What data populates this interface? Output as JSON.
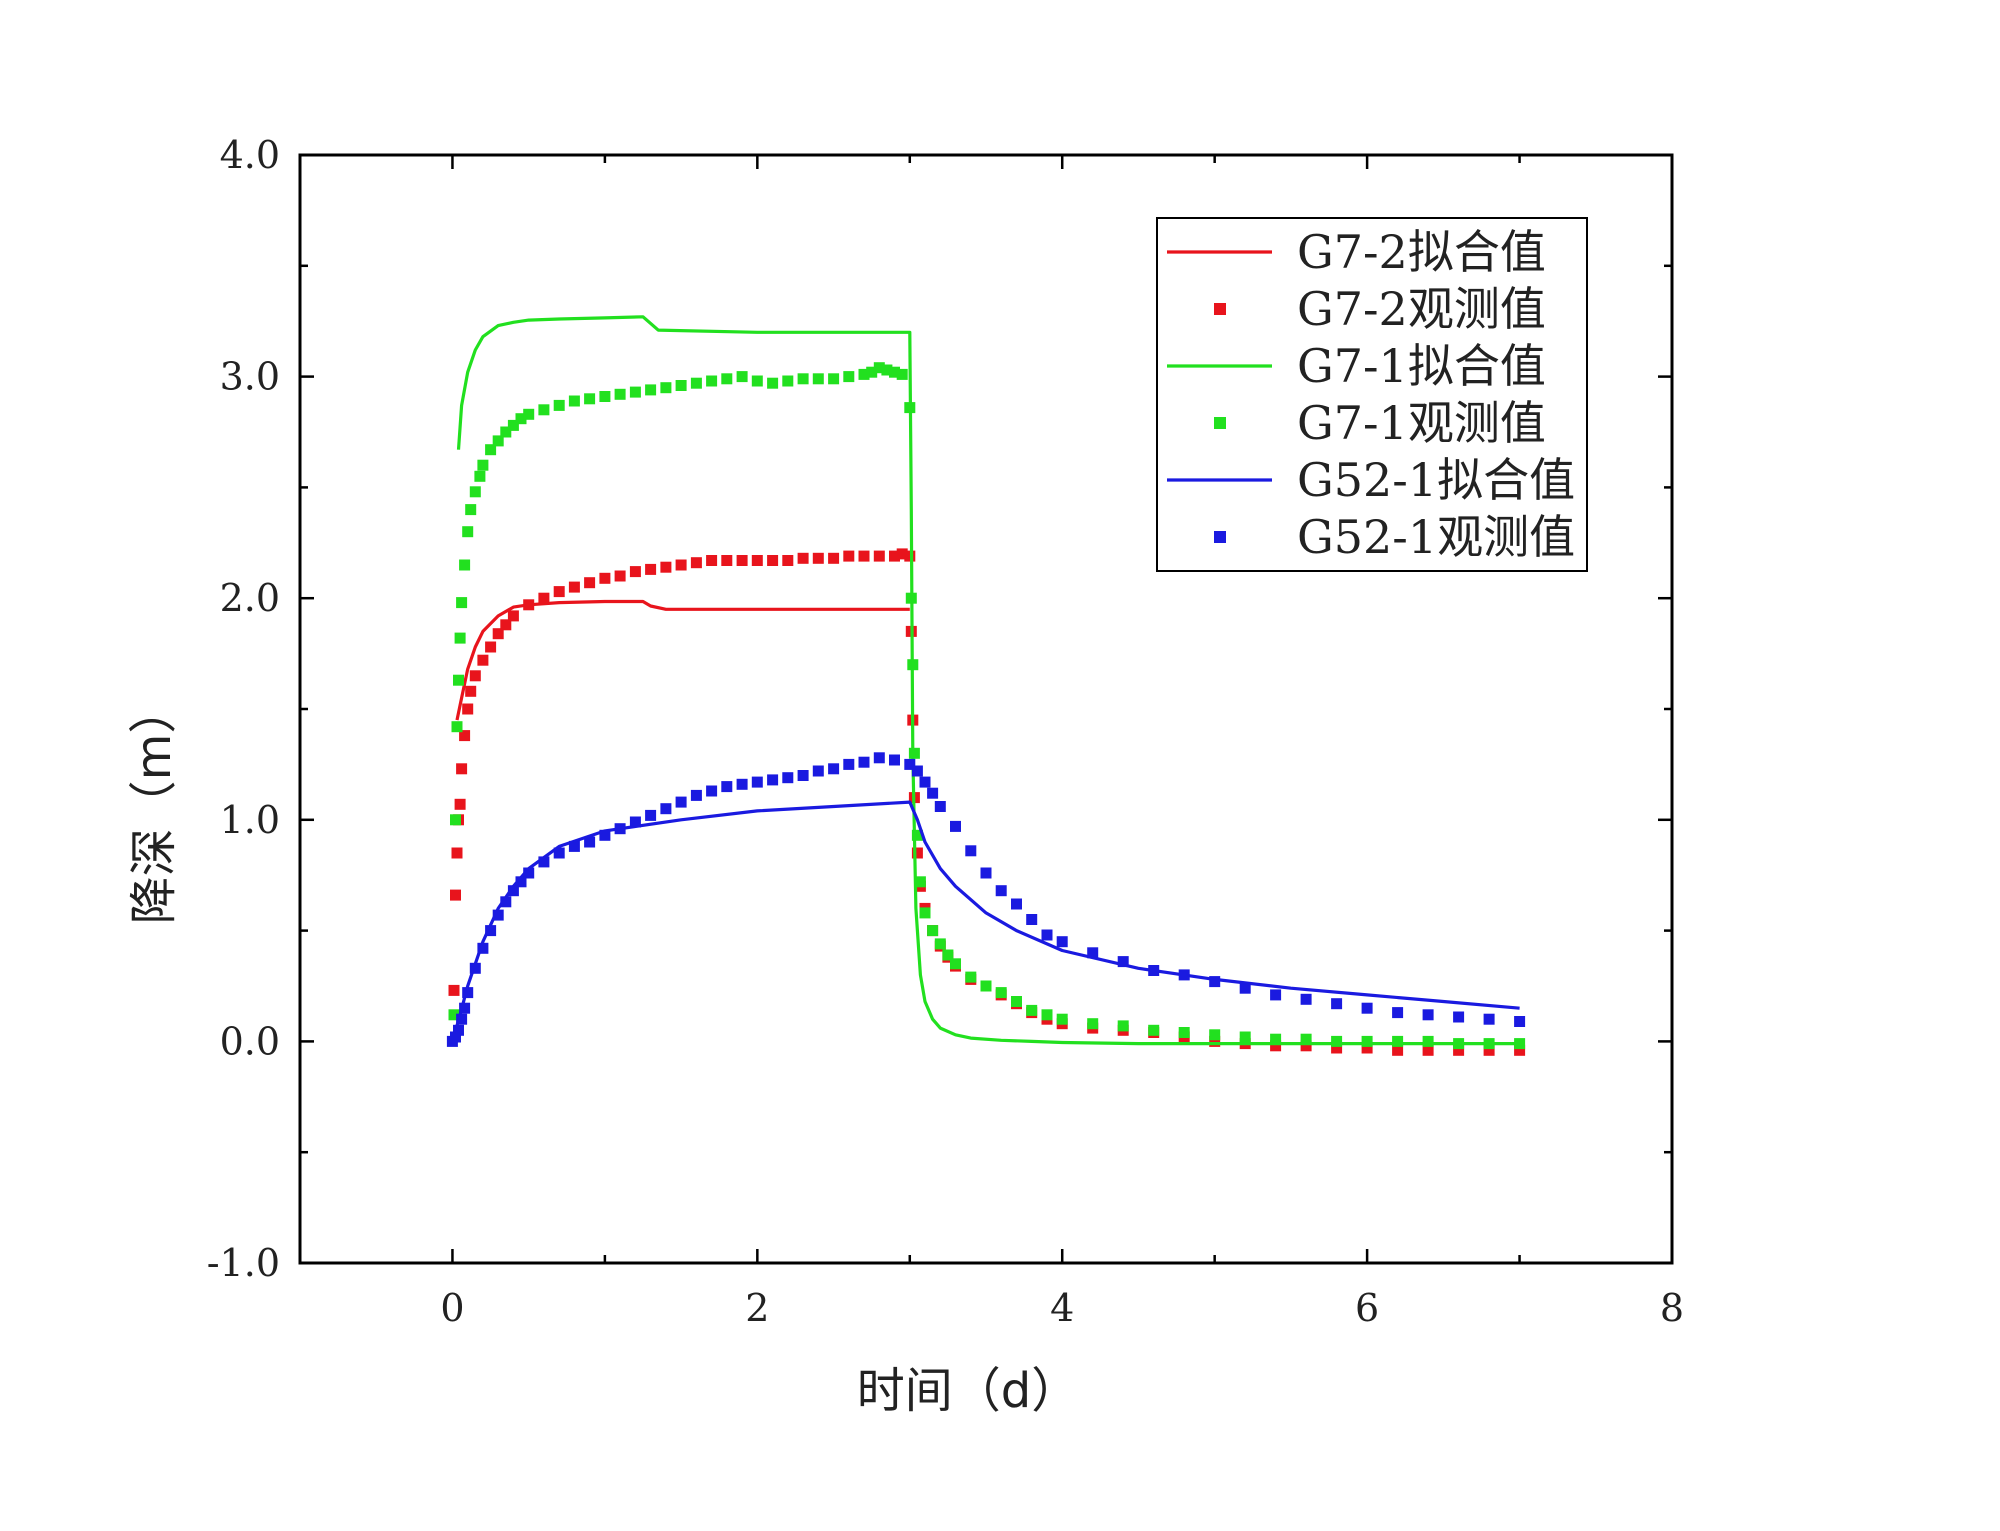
{
  "chart_data": {
    "type": "line",
    "title": "",
    "xlabel": "时间（d）",
    "ylabel": "降深（m）",
    "xlim": [
      -1,
      8
    ],
    "ylim": [
      -1.0,
      4.0
    ],
    "xticks": [
      0,
      2,
      4,
      6,
      8
    ],
    "xtick_labels": [
      "0",
      "2",
      "4",
      "6",
      "8"
    ],
    "yticks": [
      -1.0,
      0.0,
      1.0,
      2.0,
      3.0,
      4.0
    ],
    "ytick_labels": [
      "-1.0",
      "0.0",
      "1.0",
      "2.0",
      "3.0",
      "4.0"
    ],
    "grid": false,
    "legend_position": "top-right",
    "series": [
      {
        "name": "G7-2拟合值",
        "kind": "line",
        "color": "#e8141c",
        "x": [
          0.03,
          0.06,
          0.1,
          0.15,
          0.2,
          0.3,
          0.4,
          0.5,
          0.7,
          1.0,
          1.25,
          1.3,
          1.4,
          2.0,
          2.5,
          3.0,
          3.0
        ],
        "y": [
          1.45,
          1.55,
          1.68,
          1.78,
          1.85,
          1.92,
          1.96,
          1.97,
          1.98,
          1.985,
          1.985,
          1.965,
          1.95,
          1.95,
          1.95,
          1.95,
          1.95
        ]
      },
      {
        "name": "G7-2观测值",
        "kind": "scatter",
        "color": "#e8141c",
        "x": [
          0.01,
          0.02,
          0.03,
          0.04,
          0.05,
          0.06,
          0.08,
          0.1,
          0.12,
          0.15,
          0.2,
          0.25,
          0.3,
          0.35,
          0.4,
          0.5,
          0.6,
          0.7,
          0.8,
          0.9,
          1.0,
          1.1,
          1.2,
          1.3,
          1.4,
          1.5,
          1.6,
          1.7,
          1.8,
          1.9,
          2.0,
          2.1,
          2.2,
          2.3,
          2.4,
          2.5,
          2.6,
          2.7,
          2.8,
          2.9,
          2.95,
          3.0,
          3.01,
          3.02,
          3.03,
          3.05,
          3.07,
          3.1,
          3.15,
          3.2,
          3.25,
          3.3,
          3.4,
          3.5,
          3.6,
          3.7,
          3.8,
          3.9,
          4.0,
          4.2,
          4.4,
          4.6,
          4.8,
          5.0,
          5.2,
          5.4,
          5.6,
          5.8,
          6.0,
          6.2,
          6.4,
          6.6,
          6.8,
          7.0
        ],
        "y": [
          0.23,
          0.66,
          0.85,
          1.0,
          1.07,
          1.23,
          1.38,
          1.5,
          1.58,
          1.65,
          1.72,
          1.78,
          1.84,
          1.88,
          1.92,
          1.97,
          2.0,
          2.03,
          2.05,
          2.07,
          2.09,
          2.1,
          2.12,
          2.13,
          2.14,
          2.15,
          2.16,
          2.17,
          2.17,
          2.17,
          2.17,
          2.17,
          2.17,
          2.18,
          2.18,
          2.18,
          2.19,
          2.19,
          2.19,
          2.19,
          2.2,
          2.19,
          1.85,
          1.45,
          1.1,
          0.85,
          0.7,
          0.6,
          0.5,
          0.43,
          0.38,
          0.34,
          0.28,
          0.25,
          0.21,
          0.17,
          0.13,
          0.1,
          0.08,
          0.06,
          0.05,
          0.04,
          0.02,
          0.0,
          -0.01,
          -0.02,
          -0.02,
          -0.03,
          -0.03,
          -0.04,
          -0.04,
          -0.04,
          -0.04,
          -0.04
        ]
      },
      {
        "name": "G7-1拟合值",
        "kind": "line",
        "color": "#22e01f",
        "x": [
          0.04,
          0.06,
          0.1,
          0.15,
          0.2,
          0.3,
          0.4,
          0.5,
          0.7,
          1.0,
          1.25,
          1.3,
          1.35,
          2.0,
          2.5,
          3.0,
          3.0,
          3.01,
          3.02,
          3.04,
          3.07,
          3.1,
          3.15,
          3.2,
          3.3,
          3.4,
          3.6,
          3.8,
          4.0,
          4.5,
          5.0,
          6.0,
          7.0
        ],
        "y": [
          2.67,
          2.87,
          3.02,
          3.12,
          3.18,
          3.23,
          3.245,
          3.255,
          3.26,
          3.265,
          3.27,
          3.24,
          3.21,
          3.2,
          3.2,
          3.2,
          3.2,
          2.4,
          1.3,
          0.6,
          0.3,
          0.18,
          0.1,
          0.06,
          0.03,
          0.015,
          0.005,
          0.0,
          -0.005,
          -0.01,
          -0.01,
          -0.01,
          -0.01
        ]
      },
      {
        "name": "G7-1观测值",
        "kind": "scatter",
        "color": "#22e01f",
        "x": [
          0.01,
          0.02,
          0.03,
          0.04,
          0.05,
          0.06,
          0.08,
          0.1,
          0.12,
          0.15,
          0.18,
          0.2,
          0.25,
          0.3,
          0.35,
          0.4,
          0.45,
          0.5,
          0.6,
          0.7,
          0.8,
          0.9,
          1.0,
          1.1,
          1.2,
          1.3,
          1.4,
          1.5,
          1.6,
          1.7,
          1.8,
          1.9,
          2.0,
          2.1,
          2.2,
          2.3,
          2.4,
          2.5,
          2.6,
          2.7,
          2.75,
          2.8,
          2.85,
          2.9,
          2.95,
          3.0,
          3.01,
          3.02,
          3.03,
          3.05,
          3.07,
          3.1,
          3.15,
          3.2,
          3.25,
          3.3,
          3.4,
          3.5,
          3.6,
          3.7,
          3.8,
          3.9,
          4.0,
          4.2,
          4.4,
          4.6,
          4.8,
          5.0,
          5.2,
          5.4,
          5.6,
          5.8,
          6.0,
          6.2,
          6.4,
          6.6,
          6.8,
          7.0
        ],
        "y": [
          0.12,
          1.0,
          1.42,
          1.63,
          1.82,
          1.98,
          2.15,
          2.3,
          2.4,
          2.48,
          2.55,
          2.6,
          2.67,
          2.71,
          2.75,
          2.78,
          2.81,
          2.83,
          2.85,
          2.87,
          2.89,
          2.9,
          2.91,
          2.92,
          2.93,
          2.94,
          2.95,
          2.96,
          2.97,
          2.98,
          2.99,
          3.0,
          2.98,
          2.97,
          2.98,
          2.99,
          2.99,
          2.99,
          3.0,
          3.01,
          3.02,
          3.04,
          3.03,
          3.02,
          3.01,
          2.86,
          2.0,
          1.7,
          1.3,
          0.93,
          0.72,
          0.58,
          0.5,
          0.44,
          0.39,
          0.35,
          0.29,
          0.25,
          0.22,
          0.18,
          0.14,
          0.12,
          0.1,
          0.08,
          0.07,
          0.05,
          0.04,
          0.03,
          0.02,
          0.01,
          0.01,
          0.0,
          0.0,
          0.0,
          0.0,
          -0.01,
          -0.01,
          -0.01
        ]
      },
      {
        "name": "G52-1拟合值",
        "kind": "line",
        "color": "#1a1ae0",
        "x": [
          0.0,
          0.05,
          0.1,
          0.2,
          0.3,
          0.4,
          0.5,
          0.7,
          1.0,
          1.5,
          2.0,
          2.5,
          3.0,
          3.05,
          3.1,
          3.2,
          3.3,
          3.5,
          3.7,
          4.0,
          4.5,
          5.0,
          5.5,
          6.0,
          6.5,
          7.0
        ],
        "y": [
          0.0,
          0.12,
          0.25,
          0.45,
          0.6,
          0.7,
          0.78,
          0.88,
          0.95,
          1.0,
          1.04,
          1.06,
          1.08,
          1.0,
          0.9,
          0.78,
          0.7,
          0.58,
          0.5,
          0.41,
          0.33,
          0.28,
          0.24,
          0.21,
          0.18,
          0.15
        ]
      },
      {
        "name": "G52-1观测值",
        "kind": "scatter",
        "color": "#1a1ae0",
        "x": [
          0.0,
          0.02,
          0.04,
          0.06,
          0.08,
          0.1,
          0.15,
          0.2,
          0.25,
          0.3,
          0.35,
          0.4,
          0.45,
          0.5,
          0.6,
          0.7,
          0.8,
          0.9,
          1.0,
          1.1,
          1.2,
          1.3,
          1.4,
          1.5,
          1.6,
          1.7,
          1.8,
          1.9,
          2.0,
          2.1,
          2.2,
          2.3,
          2.4,
          2.5,
          2.6,
          2.7,
          2.8,
          2.9,
          3.0,
          3.05,
          3.1,
          3.15,
          3.2,
          3.3,
          3.4,
          3.5,
          3.6,
          3.7,
          3.8,
          3.9,
          4.0,
          4.2,
          4.4,
          4.6,
          4.8,
          5.0,
          5.2,
          5.4,
          5.6,
          5.8,
          6.0,
          6.2,
          6.4,
          6.6,
          6.8,
          7.0
        ],
        "y": [
          0.0,
          0.02,
          0.05,
          0.1,
          0.15,
          0.22,
          0.33,
          0.42,
          0.5,
          0.57,
          0.63,
          0.68,
          0.72,
          0.76,
          0.81,
          0.85,
          0.88,
          0.9,
          0.93,
          0.96,
          0.99,
          1.02,
          1.05,
          1.08,
          1.11,
          1.13,
          1.15,
          1.16,
          1.17,
          1.18,
          1.19,
          1.2,
          1.22,
          1.23,
          1.25,
          1.26,
          1.28,
          1.27,
          1.25,
          1.22,
          1.17,
          1.12,
          1.06,
          0.97,
          0.86,
          0.76,
          0.68,
          0.62,
          0.55,
          0.48,
          0.45,
          0.4,
          0.36,
          0.32,
          0.3,
          0.27,
          0.24,
          0.21,
          0.19,
          0.17,
          0.15,
          0.13,
          0.12,
          0.11,
          0.1,
          0.09
        ]
      }
    ]
  }
}
